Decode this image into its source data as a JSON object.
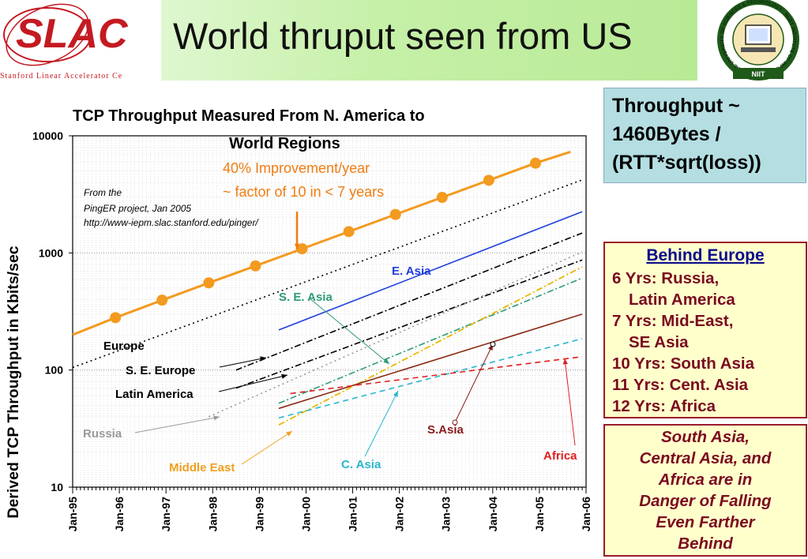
{
  "slide": {
    "title": "World thruput seen from US",
    "logo_left": {
      "wordmark": "SLAC",
      "subtitle": "Stanford Linear Accelerator Ce"
    },
    "logo_right": {
      "ring_text": "NATIONAL UNIVERSITY OF SCIENCES & TECHNOLOGY · NUST INSTITUTE OF INFORMATION TECHNOLOGY",
      "banner": "NIIT"
    }
  },
  "formula": {
    "lines": [
      "Throughput ~",
      "1460Bytes /",
      "(RTT*sqrt(loss))"
    ]
  },
  "behind_europe": {
    "title": "Behind Europe",
    "lines": [
      "6 Yrs: Russia,",
      "Latin America",
      "7 Yrs: Mid-East,",
      "SE Asia",
      "10 Yrs: South Asia",
      "11 Yrs: Cent. Asia",
      "12 Yrs: Africa"
    ]
  },
  "danger_note": {
    "lines": [
      "South Asia,",
      "Central Asia, and",
      "Africa are in",
      "Danger of Falling",
      "Even Farther",
      "Behind"
    ]
  },
  "chart_data": {
    "type": "line",
    "title": "TCP Throughput Measured From N. America to World Regions",
    "title_lines": [
      "TCP Throughput Measured From N. America to",
      "World Regions"
    ],
    "ylabel": "Derived TCP Throughput in Kbits/sec",
    "xlabel": "",
    "yscale": "log",
    "ylim": [
      10,
      10000
    ],
    "xlim": [
      "Jan-95",
      "Jan-06"
    ],
    "y_ticks": [
      "10",
      "100",
      "1000",
      "10000"
    ],
    "x_ticks": [
      "Jan-95",
      "Jan-96",
      "Jan-97",
      "Jan-98",
      "Jan-99",
      "Jan-00",
      "Jan-01",
      "Jan-02",
      "Jan-03",
      "Jan-04",
      "Jan-05",
      "Jan-06"
    ],
    "grid": true,
    "source_note": [
      "From the",
      "PingER project, Jan 2005",
      "http://www-iepm.slac.stanford.edu/pinger/"
    ],
    "annotations": {
      "improvement": [
        "40% Improvement/year",
        "~ factor of 10 in < 7 years"
      ]
    },
    "series": [
      {
        "name": "",
        "color": "#f39a1f",
        "style": "solid",
        "width": 3,
        "markers": true,
        "points": [
          [
            "1995-01",
            200
          ],
          [
            "1995-12",
            280
          ],
          [
            "1996-12",
            395
          ],
          [
            "1997-12",
            555
          ],
          [
            "1998-12",
            775
          ],
          [
            "1999-12",
            1085
          ],
          [
            "2000-12",
            1520
          ],
          [
            "2001-12",
            2130
          ],
          [
            "2002-12",
            2980
          ],
          [
            "2003-12",
            4170
          ],
          [
            "2004-12",
            5840
          ],
          [
            "2005-09",
            7300
          ]
        ]
      },
      {
        "name": "Europe",
        "color": "#000000",
        "style": "dot",
        "width": 1.6,
        "markers": false,
        "points": [
          [
            "1995-01",
            105
          ],
          [
            "2005-12",
            4200
          ]
        ]
      },
      {
        "name": "E. Asia",
        "color": "#1f3fdc",
        "style": "solid",
        "width": 1.6,
        "markers": false,
        "points": [
          [
            "1999-06",
            220
          ],
          [
            "2005-12",
            2250
          ]
        ]
      },
      {
        "name": "S. E. Europe",
        "color": "#000000",
        "style": "dashdot",
        "width": 1.6,
        "markers": false,
        "points": [
          [
            "1998-07",
            100
          ],
          [
            "2005-12",
            1480
          ]
        ]
      },
      {
        "name": "Latin America",
        "color": "#000000",
        "style": "dashdot",
        "width": 1.6,
        "markers": false,
        "points": [
          [
            "1998-07",
            70
          ],
          [
            "2005-12",
            870
          ]
        ]
      },
      {
        "name": "Russia",
        "color": "#9a9a9a",
        "style": "dot",
        "width": 1.6,
        "markers": false,
        "points": [
          [
            "1997-12",
            40
          ],
          [
            "2005-12",
            1020
          ]
        ]
      },
      {
        "name": "S. E. Asia",
        "color": "#2e9a78",
        "style": "dashdot",
        "width": 1.6,
        "markers": false,
        "points": [
          [
            "1999-06",
            52
          ],
          [
            "2005-12",
            610
          ]
        ]
      },
      {
        "name": "Middle East",
        "color": "#e6b800",
        "style": "dashdot",
        "width": 1.8,
        "markers": false,
        "points": [
          [
            "1999-06",
            34
          ],
          [
            "2005-12",
            760
          ]
        ]
      },
      {
        "name": "S.Asia",
        "color": "#8b2a14",
        "style": "solid",
        "width": 1.6,
        "markers": false,
        "points": [
          [
            "1999-06",
            47
          ],
          [
            "2005-12",
            300
          ]
        ]
      },
      {
        "name": "C. Asia",
        "color": "#29b6cc",
        "style": "dash",
        "width": 1.6,
        "markers": false,
        "points": [
          [
            "1999-06",
            39
          ],
          [
            "2005-12",
            185
          ]
        ]
      },
      {
        "name": "Africa",
        "color": "#e01e1e",
        "style": "dash",
        "width": 1.6,
        "markers": false,
        "points": [
          [
            "1999-09",
            63
          ],
          [
            "2005-12",
            130
          ]
        ]
      }
    ]
  }
}
